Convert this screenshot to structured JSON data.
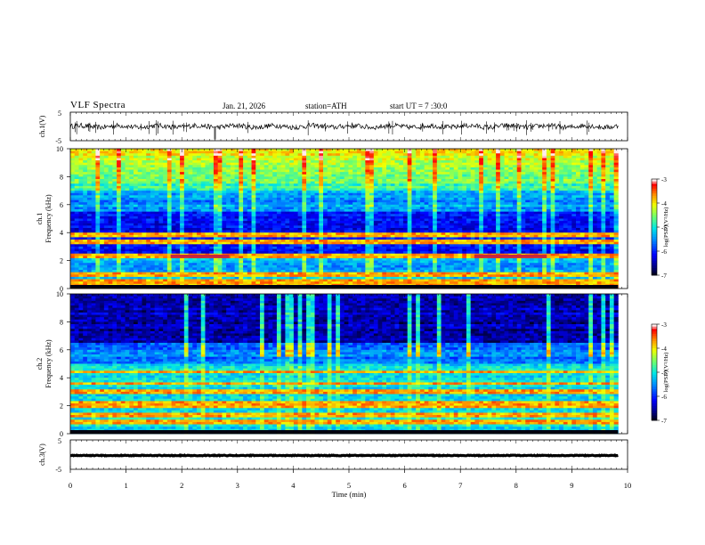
{
  "header": {
    "title": "VLF  Spectra",
    "date": "Jan. 21, 2026",
    "station": "station=ATH",
    "start_ut": "start  UT  =   7  :30:0"
  },
  "colors": {
    "axis": "#000000",
    "background": "#ffffff",
    "colorscale": [
      "#000000",
      "#00007f",
      "#0000ff",
      "#0080ff",
      "#00ffff",
      "#80ff80",
      "#ffff00",
      "#ff8000",
      "#ff0000",
      "#ffffff"
    ]
  },
  "chart_data": [
    {
      "type": "line",
      "title": "ch.1 waveform",
      "ylabel": "ch.1(V)",
      "y_ticks": [
        "5",
        "-5"
      ],
      "ylim": [
        -5,
        5
      ],
      "xlim": [
        0,
        10
      ],
      "x_ticks": [
        "0",
        "1",
        "2",
        "3",
        "4",
        "5",
        "6",
        "7",
        "8",
        "9",
        "10"
      ],
      "mean_value": 0
    },
    {
      "type": "heatmap",
      "title": "ch.1 spectrogram",
      "ylabel": "ch.1\nFrequency  (kHz)",
      "y_ticks": [
        "0",
        "2",
        "4",
        "6",
        "8",
        "10"
      ],
      "ylim": [
        0,
        10
      ],
      "xlim": [
        0,
        9.83
      ],
      "colorbar": {
        "label": "log(PSD)(V²/Hz)",
        "ticks": [
          "-3",
          "-4",
          "-5",
          "-6",
          "-7"
        ],
        "range": [
          -7,
          -3
        ]
      },
      "strong_lines_khz": [
        0.2,
        0.5,
        1.0,
        2.3,
        3.3,
        3.8
      ],
      "quiet_band_khz": [
        2.5,
        5.5
      ],
      "features": [
        {
          "t_start": 1.8,
          "t_end": 2.85,
          "freq_khz": 2.3,
          "level": -3.5
        },
        {
          "t_start": 7.25,
          "t_end": 8.55,
          "freq_khz": 2.3,
          "level": -3.5
        }
      ]
    },
    {
      "type": "heatmap",
      "title": "ch.2 spectrogram",
      "ylabel": "ch.2\nFrequency  (kHz)",
      "y_ticks": [
        "0",
        "2",
        "4",
        "6",
        "8",
        "10"
      ],
      "ylim": [
        0,
        10
      ],
      "xlim": [
        0,
        9.83
      ],
      "colorbar": {
        "label": "log(PSD)(V²/Hz)",
        "ticks": [
          "-3",
          "-4",
          "-5",
          "-6",
          "-7"
        ],
        "range": [
          -7,
          -3
        ]
      },
      "strong_lines_khz": [
        0.8,
        1.3,
        1.9,
        2.2,
        3.0,
        3.6,
        4.4
      ],
      "quiet_band_khz": [
        6.5,
        9.5
      ]
    },
    {
      "type": "line",
      "title": "ch.3 waveform",
      "ylabel": "ch.3(V)",
      "y_ticks": [
        "5",
        "-5"
      ],
      "ylim": [
        -5,
        5
      ],
      "xlim": [
        0,
        10
      ],
      "xlabel": "Time  (min)",
      "x_ticks": [
        "0",
        "1",
        "2",
        "3",
        "4",
        "5",
        "6",
        "7",
        "8",
        "9",
        "10"
      ],
      "mean_value": -0.3
    }
  ]
}
